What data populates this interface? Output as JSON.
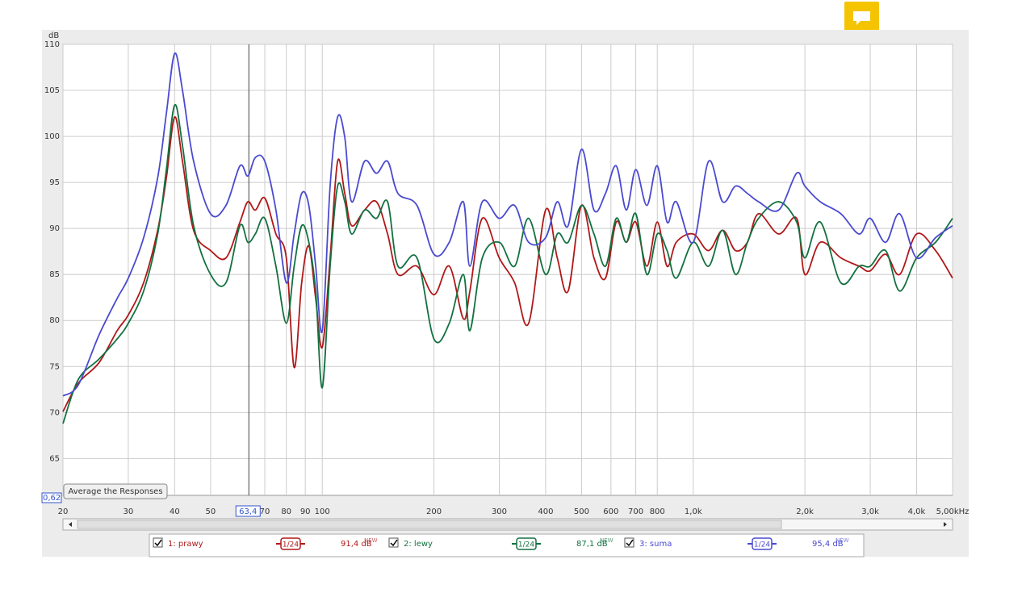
{
  "chart_data": {
    "type": "line",
    "y_label": "dB",
    "xscale": "log",
    "grid": true,
    "xlim": [
      20,
      5000
    ],
    "ylim": [
      61,
      110
    ],
    "xticks": [
      20,
      30,
      40,
      50,
      70,
      80,
      90,
      100,
      200,
      300,
      400,
      500,
      600,
      700,
      800,
      {
        "value": 1000,
        "label": "1,0k"
      },
      {
        "value": 2000,
        "label": "2,0k"
      },
      {
        "value": 3000,
        "label": "3,0k"
      },
      {
        "value": 4000,
        "label": "4,0k"
      },
      {
        "value": 5000,
        "label": "5,00kHz"
      }
    ],
    "yticks": [
      65,
      70,
      75,
      80,
      85,
      90,
      95,
      100,
      105,
      110
    ],
    "cursor": {
      "value": 63.4,
      "label": "63,4"
    },
    "range_label": "0,62",
    "button": "Average the Responses",
    "x": [
      20,
      22,
      25,
      28,
      30,
      33,
      36,
      38,
      40,
      42,
      45,
      50,
      55,
      60,
      63,
      66,
      70,
      75,
      80,
      84,
      88,
      92,
      96,
      100,
      105,
      110,
      115,
      120,
      130,
      140,
      150,
      160,
      180,
      200,
      220,
      240,
      250,
      270,
      300,
      330,
      360,
      400,
      430,
      460,
      500,
      540,
      580,
      620,
      660,
      700,
      750,
      800,
      850,
      900,
      1000,
      1100,
      1200,
      1300,
      1400,
      1500,
      1700,
      1900,
      2000,
      2200,
      2500,
      2800,
      3000,
      3300,
      3600,
      4000,
      4500,
      5000
    ],
    "series": [
      {
        "name": "1: prawy",
        "color": "#b01818",
        "smoothing": "1/24",
        "level": "91,4 dB",
        "badge": "NEW",
        "values": [
          70.1,
          73.2,
          75.4,
          78.9,
          80.6,
          84.1,
          89.8,
          95.5,
          102.1,
          97.3,
          89.8,
          87.6,
          86.8,
          90.7,
          92.9,
          92,
          93.3,
          89.4,
          86.8,
          74.9,
          84.1,
          88.1,
          82.4,
          77.1,
          86.8,
          97.3,
          93.8,
          90.3,
          92,
          92.9,
          89.4,
          85,
          85.9,
          82.8,
          85.9,
          80.2,
          83.2,
          91.1,
          86.8,
          84.1,
          79.7,
          92,
          86.8,
          83.2,
          92.5,
          86.8,
          84.6,
          90.7,
          88.5,
          90.7,
          85.9,
          90.7,
          85.9,
          88.5,
          89.4,
          87.6,
          89.8,
          87.6,
          88.5,
          91.6,
          89.4,
          91.1,
          85,
          88.5,
          86.8,
          85.9,
          85.4,
          87.2,
          85,
          89.4,
          87.6,
          84.6
        ]
      },
      {
        "name": "2: lewy",
        "color": "#137040",
        "smoothing": "1/24",
        "level": "87,1 dB",
        "badge": "NEW",
        "values": [
          68.8,
          73.6,
          75.8,
          78,
          79.7,
          83.2,
          89.4,
          96.4,
          103.4,
          99,
          90.3,
          85,
          84.1,
          90.3,
          88.5,
          89.4,
          91.1,
          85.9,
          79.7,
          85.9,
          90.3,
          88.5,
          83.2,
          72.7,
          85.9,
          94.6,
          92.9,
          89.4,
          92,
          91.1,
          92.9,
          85.9,
          86.8,
          78,
          79.7,
          85,
          78.9,
          86.8,
          88.5,
          85.9,
          91.1,
          85,
          89.4,
          88.5,
          92.5,
          89.4,
          85.9,
          91.1,
          88.5,
          91.6,
          85,
          89.4,
          87.6,
          84.6,
          88.5,
          85.9,
          89.8,
          85,
          88.5,
          91.1,
          92.9,
          90.7,
          86.8,
          90.7,
          84.1,
          85.9,
          85.9,
          87.6,
          83.2,
          86.8,
          88.5,
          91.1
        ]
      },
      {
        "name": "3: suma",
        "color": "#4a4ad0",
        "smoothing": "1/24",
        "level": "95,4 dB",
        "badge": "NEW",
        "values": [
          71.8,
          73,
          78.4,
          82.4,
          84.6,
          89,
          95.5,
          102.5,
          109,
          105,
          97.3,
          91.6,
          92.5,
          96.8,
          95.7,
          97.7,
          97.3,
          92,
          84.1,
          89.4,
          93.8,
          92.5,
          85.9,
          78.9,
          94.6,
          102.1,
          99.9,
          92.9,
          97.3,
          96,
          97.3,
          93.8,
          92.5,
          87.2,
          88.5,
          92.9,
          85.9,
          92.9,
          91.1,
          92.5,
          88.5,
          89,
          92.9,
          90.3,
          98.6,
          92,
          93.8,
          96.8,
          92,
          96.4,
          92.5,
          96.8,
          90.7,
          92.9,
          88.5,
          97.3,
          92.9,
          94.6,
          93.8,
          92.9,
          92,
          96,
          94.6,
          92.9,
          91.6,
          89.4,
          91.1,
          88.5,
          91.6,
          86.8,
          89,
          90.3
        ]
      }
    ]
  }
}
